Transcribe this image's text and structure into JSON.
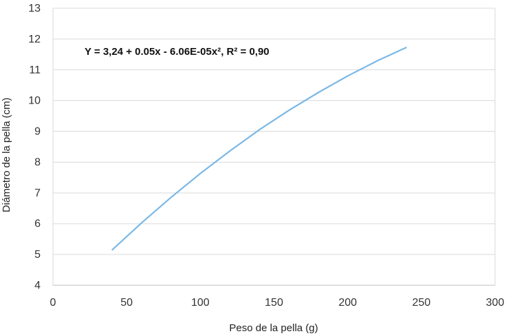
{
  "chart_data": {
    "type": "line",
    "xlabel": "Peso de la pella (g)",
    "ylabel": "Diámetro de la pella (cm)",
    "xlim": [
      0,
      300
    ],
    "ylim": [
      4,
      13
    ],
    "x_ticks": [
      "0",
      "50",
      "100",
      "150",
      "200",
      "250",
      "300"
    ],
    "y_ticks": [
      "4",
      "5",
      "6",
      "7",
      "8",
      "9",
      "10",
      "11",
      "12",
      "13"
    ],
    "grid": "horizontal",
    "annotation": "Y = 3,24 + 0.05x - 6.06E-05x², R² = 0,90",
    "series": [
      {
        "color": "#7ab8e6",
        "x": [
          40,
          60,
          80,
          100,
          120,
          140,
          160,
          180,
          200,
          220,
          240
        ],
        "y": [
          5.14,
          6.02,
          6.85,
          7.63,
          8.36,
          9.05,
          9.68,
          10.26,
          10.8,
          11.29,
          11.73
        ]
      }
    ]
  }
}
